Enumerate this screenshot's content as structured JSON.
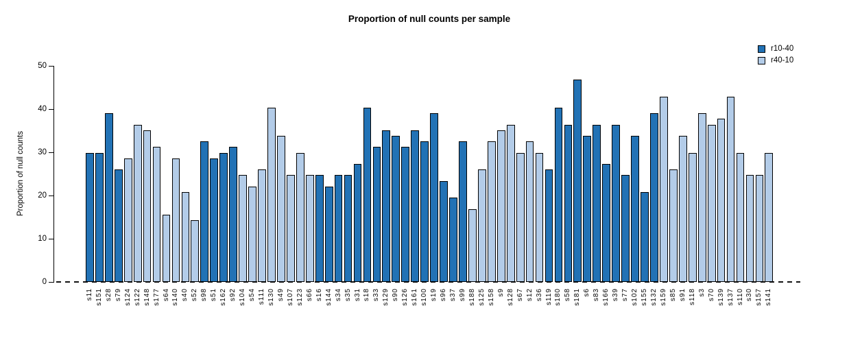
{
  "chart_data": {
    "type": "bar",
    "title": "Proportion of null counts per sample",
    "xlabel": "",
    "ylabel": "Proportion of null counts",
    "ylim": [
      0,
      50
    ],
    "yticks": [
      0,
      10,
      20,
      30,
      40,
      50
    ],
    "grid": false,
    "legend_position": "top-right",
    "zero_line_style": "dashed",
    "legend": [
      {
        "label": "r10-40",
        "color": "#2272B5"
      },
      {
        "label": "r40-10",
        "color": "#B3CCE8"
      }
    ],
    "bars": [
      {
        "label": "s11",
        "value": 29.9,
        "series": "r10-40"
      },
      {
        "label": "s151",
        "value": 29.9,
        "series": "r10-40"
      },
      {
        "label": "s28",
        "value": 39.0,
        "series": "r10-40"
      },
      {
        "label": "s79",
        "value": 26.0,
        "series": "r10-40"
      },
      {
        "label": "s124",
        "value": 28.6,
        "series": "r40-10"
      },
      {
        "label": "s122",
        "value": 36.4,
        "series": "r40-10"
      },
      {
        "label": "s148",
        "value": 35.1,
        "series": "r40-10"
      },
      {
        "label": "s177",
        "value": 31.2,
        "series": "r40-10"
      },
      {
        "label": "s64",
        "value": 15.6,
        "series": "r40-10"
      },
      {
        "label": "s140",
        "value": 28.6,
        "series": "r40-10"
      },
      {
        "label": "s40",
        "value": 20.8,
        "series": "r40-10"
      },
      {
        "label": "s52",
        "value": 14.3,
        "series": "r40-10"
      },
      {
        "label": "s98",
        "value": 32.5,
        "series": "r10-40"
      },
      {
        "label": "s51",
        "value": 28.6,
        "series": "r10-40"
      },
      {
        "label": "s162",
        "value": 29.9,
        "series": "r10-40"
      },
      {
        "label": "s92",
        "value": 31.2,
        "series": "r10-40"
      },
      {
        "label": "s104",
        "value": 24.7,
        "series": "r40-10"
      },
      {
        "label": "s54",
        "value": 22.1,
        "series": "r40-10"
      },
      {
        "label": "s111",
        "value": 26.0,
        "series": "r40-10"
      },
      {
        "label": "s130",
        "value": 40.3,
        "series": "r40-10"
      },
      {
        "label": "s49",
        "value": 33.8,
        "series": "r40-10"
      },
      {
        "label": "s107",
        "value": 24.7,
        "series": "r40-10"
      },
      {
        "label": "s123",
        "value": 29.9,
        "series": "r40-10"
      },
      {
        "label": "s66",
        "value": 24.7,
        "series": "r40-10"
      },
      {
        "label": "s16",
        "value": 24.7,
        "series": "r10-40"
      },
      {
        "label": "s144",
        "value": 22.1,
        "series": "r10-40"
      },
      {
        "label": "s34",
        "value": 24.7,
        "series": "r10-40"
      },
      {
        "label": "s35",
        "value": 24.7,
        "series": "r10-40"
      },
      {
        "label": "s31",
        "value": 27.3,
        "series": "r10-40"
      },
      {
        "label": "s18",
        "value": 40.3,
        "series": "r10-40"
      },
      {
        "label": "s33",
        "value": 31.2,
        "series": "r10-40"
      },
      {
        "label": "s129",
        "value": 35.1,
        "series": "r10-40"
      },
      {
        "label": "s90",
        "value": 33.8,
        "series": "r10-40"
      },
      {
        "label": "s126",
        "value": 31.2,
        "series": "r10-40"
      },
      {
        "label": "s161",
        "value": 35.1,
        "series": "r10-40"
      },
      {
        "label": "s100",
        "value": 32.5,
        "series": "r10-40"
      },
      {
        "label": "s19",
        "value": 39.0,
        "series": "r10-40"
      },
      {
        "label": "s96",
        "value": 23.4,
        "series": "r10-40"
      },
      {
        "label": "s37",
        "value": 19.5,
        "series": "r10-40"
      },
      {
        "label": "s99",
        "value": 32.5,
        "series": "r10-40"
      },
      {
        "label": "s188",
        "value": 16.9,
        "series": "r40-10"
      },
      {
        "label": "s125",
        "value": 26.0,
        "series": "r40-10"
      },
      {
        "label": "s158",
        "value": 32.5,
        "series": "r40-10"
      },
      {
        "label": "s9",
        "value": 35.1,
        "series": "r40-10"
      },
      {
        "label": "s128",
        "value": 36.4,
        "series": "r40-10"
      },
      {
        "label": "s67",
        "value": 29.9,
        "series": "r40-10"
      },
      {
        "label": "s12",
        "value": 32.5,
        "series": "r40-10"
      },
      {
        "label": "s36",
        "value": 29.9,
        "series": "r40-10"
      },
      {
        "label": "s119",
        "value": 26.0,
        "series": "r10-40"
      },
      {
        "label": "s180",
        "value": 40.3,
        "series": "r10-40"
      },
      {
        "label": "s58",
        "value": 36.4,
        "series": "r10-40"
      },
      {
        "label": "s181",
        "value": 46.8,
        "series": "r10-40"
      },
      {
        "label": "s6",
        "value": 33.8,
        "series": "r10-40"
      },
      {
        "label": "s83",
        "value": 36.4,
        "series": "r10-40"
      },
      {
        "label": "s166",
        "value": 27.3,
        "series": "r10-40"
      },
      {
        "label": "s39",
        "value": 36.4,
        "series": "r10-40"
      },
      {
        "label": "s77",
        "value": 24.7,
        "series": "r10-40"
      },
      {
        "label": "s102",
        "value": 33.8,
        "series": "r10-40"
      },
      {
        "label": "s155",
        "value": 20.8,
        "series": "r10-40"
      },
      {
        "label": "s132",
        "value": 39.0,
        "series": "r10-40"
      },
      {
        "label": "s159",
        "value": 42.9,
        "series": "r40-10"
      },
      {
        "label": "s85",
        "value": 26.0,
        "series": "r40-10"
      },
      {
        "label": "s91",
        "value": 33.8,
        "series": "r40-10"
      },
      {
        "label": "s118",
        "value": 29.9,
        "series": "r40-10"
      },
      {
        "label": "s3",
        "value": 39.0,
        "series": "r40-10"
      },
      {
        "label": "s70",
        "value": 36.4,
        "series": "r40-10"
      },
      {
        "label": "s139",
        "value": 37.7,
        "series": "r40-10"
      },
      {
        "label": "s137",
        "value": 42.9,
        "series": "r40-10"
      },
      {
        "label": "s110",
        "value": 29.9,
        "series": "r40-10"
      },
      {
        "label": "s30",
        "value": 24.7,
        "series": "r40-10"
      },
      {
        "label": "s157",
        "value": 24.7,
        "series": "r40-10"
      },
      {
        "label": "s141",
        "value": 29.9,
        "series": "r40-10"
      }
    ]
  }
}
